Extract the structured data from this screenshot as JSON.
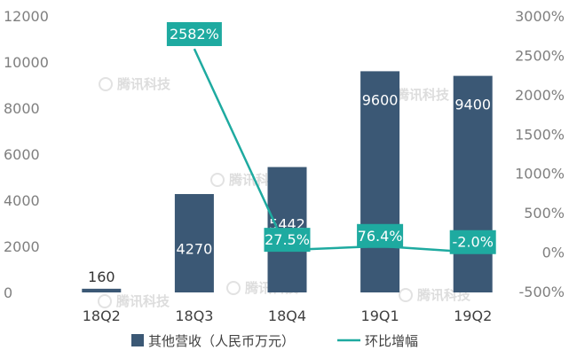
{
  "chart_data": {
    "type": "bar",
    "categories": [
      "18Q2",
      "18Q3",
      "18Q4",
      "19Q1",
      "19Q2"
    ],
    "series": [
      {
        "name": "其他营收（人民币万元）",
        "type": "bar",
        "axis": "left",
        "values": [
          160,
          4270,
          5442,
          9600,
          9400
        ],
        "labels": [
          "160",
          "4270",
          "5442",
          "9600",
          "9400"
        ],
        "color": "#3b5875"
      },
      {
        "name": "环比增幅",
        "type": "line",
        "axis": "right",
        "values": [
          null,
          2582,
          27.5,
          76.4,
          -2.0
        ],
        "labels": [
          "",
          "2582%",
          "27.5%",
          "76.4%",
          "-2.0%"
        ],
        "color": "#1eaaa0"
      }
    ],
    "y_left": {
      "min": 0,
      "max": 12000,
      "ticks": [
        0,
        2000,
        4000,
        6000,
        8000,
        10000,
        12000
      ],
      "tick_labels": [
        "0",
        "2000",
        "4000",
        "6000",
        "8000",
        "10000",
        "12000"
      ]
    },
    "y_right": {
      "min": -500,
      "max": 3000,
      "ticks": [
        -500,
        0,
        500,
        1000,
        1500,
        2000,
        2500,
        3000
      ],
      "tick_labels": [
        "-500%",
        "0%",
        "500%",
        "1000%",
        "1500%",
        "2000%",
        "2500%",
        "3000%"
      ]
    },
    "legend_position": "bottom",
    "grid": false,
    "watermark": "腾讯科技"
  }
}
